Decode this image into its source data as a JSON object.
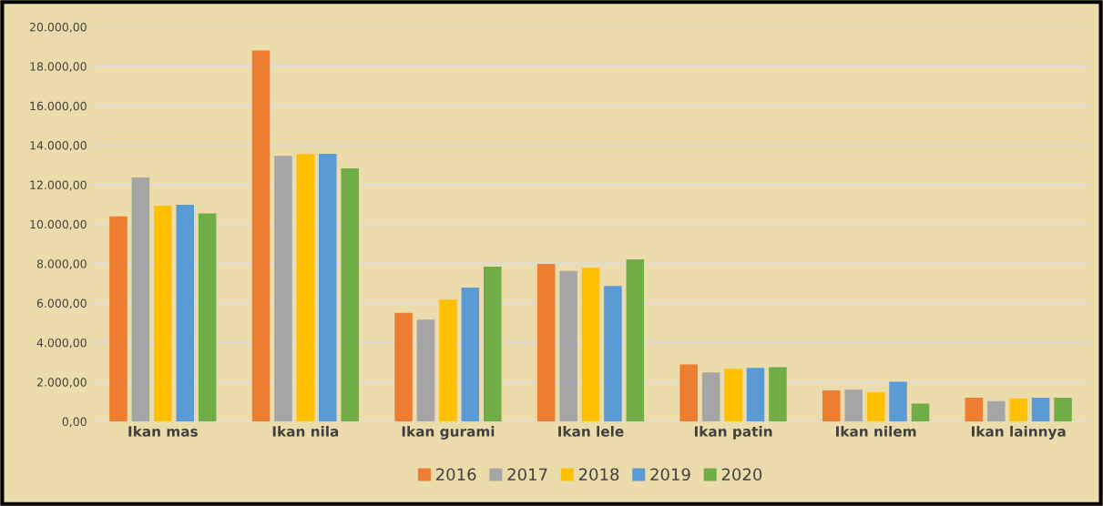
{
  "chart_data": {
    "type": "bar",
    "categories": [
      "Ikan mas",
      "Ikan nila",
      "Ikan gurami",
      "Ikan lele",
      "Ikan patin",
      "Ikan nilem",
      "Ikan lainnya"
    ],
    "series": [
      {
        "name": "2016",
        "color": "#ed7d31",
        "values": [
          10400,
          18800,
          5510,
          7990,
          2890,
          1580,
          1210
        ]
      },
      {
        "name": "2017",
        "color": "#a5a5a5",
        "values": [
          12370,
          13460,
          5160,
          7630,
          2490,
          1610,
          1030
        ]
      },
      {
        "name": "2018",
        "color": "#ffc000",
        "values": [
          10940,
          13550,
          6170,
          7790,
          2670,
          1490,
          1170
        ]
      },
      {
        "name": "2019",
        "color": "#5b9bd5",
        "values": [
          10980,
          13560,
          6790,
          6870,
          2720,
          2010,
          1210
        ]
      },
      {
        "name": "2020",
        "color": "#70ad47",
        "values": [
          10550,
          12830,
          7850,
          8220,
          2750,
          910,
          1210
        ]
      }
    ],
    "ylim": [
      0,
      20000
    ],
    "yticks": [
      {
        "value": 0,
        "label": "0,00"
      },
      {
        "value": 2000,
        "label": "2.000,00"
      },
      {
        "value": 4000,
        "label": "4.000,00"
      },
      {
        "value": 6000,
        "label": "6.000,00"
      },
      {
        "value": 8000,
        "label": "8.000,00"
      },
      {
        "value": 10000,
        "label": "10.000,00"
      },
      {
        "value": 12000,
        "label": "12.000,00"
      },
      {
        "value": 14000,
        "label": "14.000,00"
      },
      {
        "value": 16000,
        "label": "16.000,00"
      },
      {
        "value": 18000,
        "label": "18.000,00"
      },
      {
        "value": 20000,
        "label": "20.000,00"
      }
    ],
    "grid": "y",
    "legend": "bottom"
  }
}
